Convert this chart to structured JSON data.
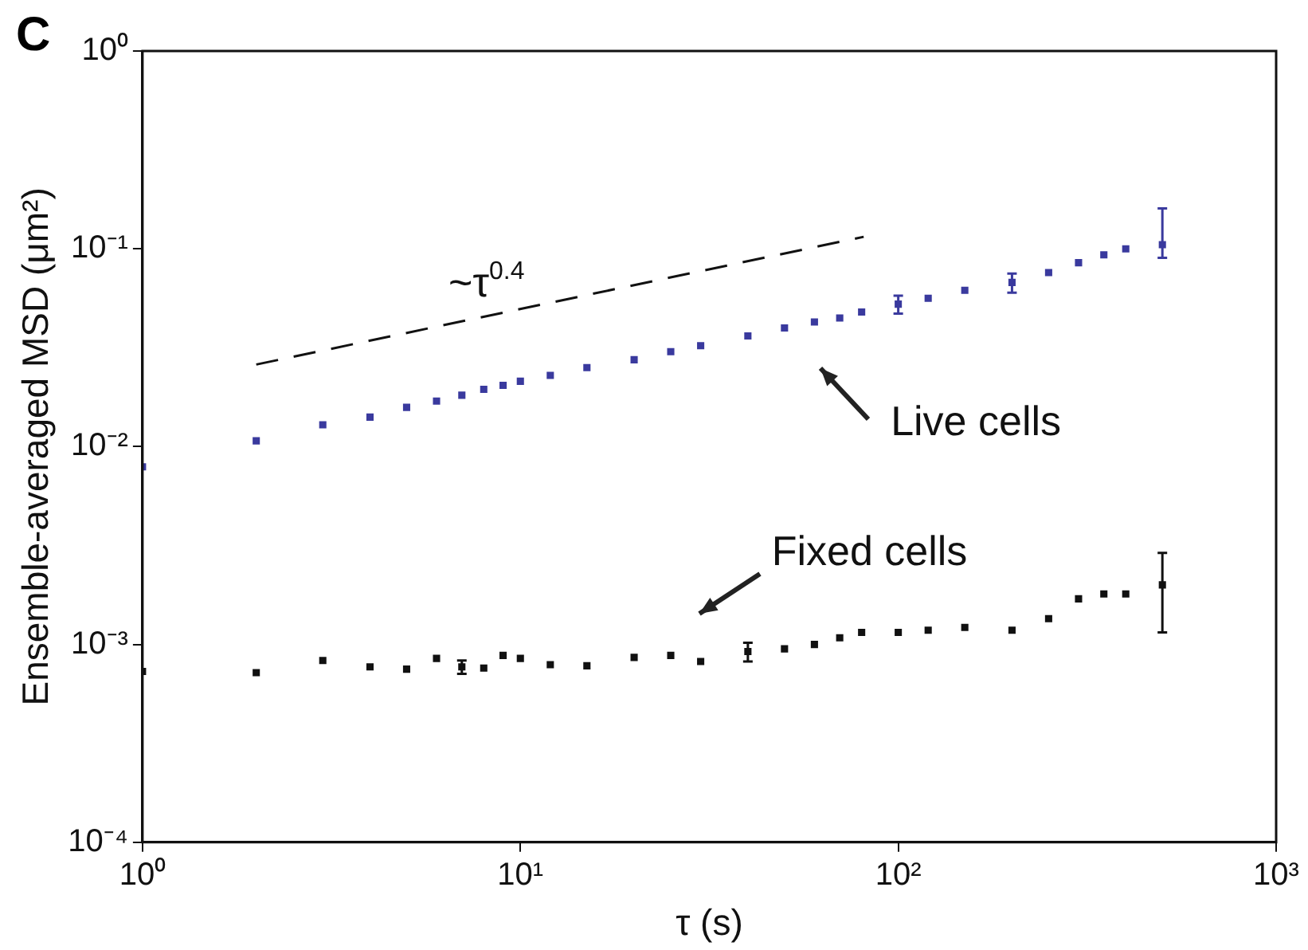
{
  "chart_data": {
    "type": "scatter",
    "title": "C",
    "xlabel": "τ (s)",
    "ylabel": "Ensemble-averaged MSD (μm²)",
    "log": "xy",
    "grid": false,
    "legend": false,
    "xlim": [
      1,
      1000
    ],
    "xticks": [
      {
        "value": 1,
        "label": "10⁰"
      },
      {
        "value": 10,
        "label": "10¹"
      },
      {
        "value": 100,
        "label": "10²"
      },
      {
        "value": 1000,
        "label": "10³"
      }
    ],
    "ylim": [
      0.0001,
      1
    ],
    "yticks": [
      {
        "value": 0.0001,
        "label": "10⁻⁴"
      },
      {
        "value": 0.001,
        "label": "10⁻³"
      },
      {
        "value": 0.01,
        "label": "10⁻²"
      },
      {
        "value": 0.1,
        "label": "10⁻¹"
      },
      {
        "value": 1,
        "label": "10⁰"
      }
    ],
    "x": [
      1,
      2,
      3,
      4,
      5,
      6,
      7,
      8,
      9,
      10,
      12,
      15,
      20,
      25,
      30,
      40,
      50,
      60,
      70,
      80,
      100,
      120,
      150,
      200,
      250,
      300,
      350,
      400,
      500
    ],
    "series": [
      {
        "color": "#3a3a9e",
        "marker": "square",
        "values": [
          0.0079,
          0.0107,
          0.0129,
          0.0141,
          0.0158,
          0.017,
          0.0182,
          0.0195,
          0.0204,
          0.0214,
          0.0229,
          0.0251,
          0.0275,
          0.0302,
          0.0324,
          0.0363,
          0.0398,
          0.0427,
          0.0447,
          0.0479,
          0.0525,
          0.0562,
          0.0617,
          0.0676,
          0.0759,
          0.0851,
          0.0933,
          0.1,
          0.105
        ],
        "errors": [
          null,
          null,
          null,
          null,
          null,
          null,
          null,
          null,
          null,
          null,
          null,
          null,
          null,
          null,
          null,
          null,
          null,
          null,
          null,
          null,
          [
            0.047,
            0.058
          ],
          null,
          null,
          [
            0.06,
            0.075
          ],
          null,
          null,
          null,
          null,
          [
            0.09,
            0.16
          ]
        ]
      },
      {
        "color": "#111111",
        "marker": "square",
        "values": [
          0.00073,
          0.00072,
          0.00083,
          0.00077,
          0.00075,
          0.00085,
          0.00077,
          0.00076,
          0.00088,
          0.00085,
          0.00079,
          0.00078,
          0.00086,
          0.00088,
          0.00082,
          0.00092,
          0.00095,
          0.001,
          0.00108,
          0.00115,
          0.00115,
          0.00118,
          0.00122,
          0.00118,
          0.00135,
          0.0017,
          0.0018,
          0.0018,
          0.002
        ],
        "errors": [
          null,
          null,
          null,
          null,
          null,
          null,
          6e-05,
          null,
          null,
          null,
          null,
          null,
          null,
          null,
          null,
          0.0001,
          null,
          null,
          null,
          null,
          null,
          null,
          null,
          null,
          null,
          null,
          null,
          null,
          [
            0.00115,
            0.0029
          ]
        ]
      },
      {
        "type": "line",
        "color": "#111111",
        "line_style": "dashed",
        "marker": "none",
        "x": [
          2,
          81
        ],
        "values": [
          0.026,
          0.115
        ]
      }
    ],
    "annotations": [
      "~τ$^{0.4}$",
      "Live cells",
      "Fixed cells"
    ]
  }
}
